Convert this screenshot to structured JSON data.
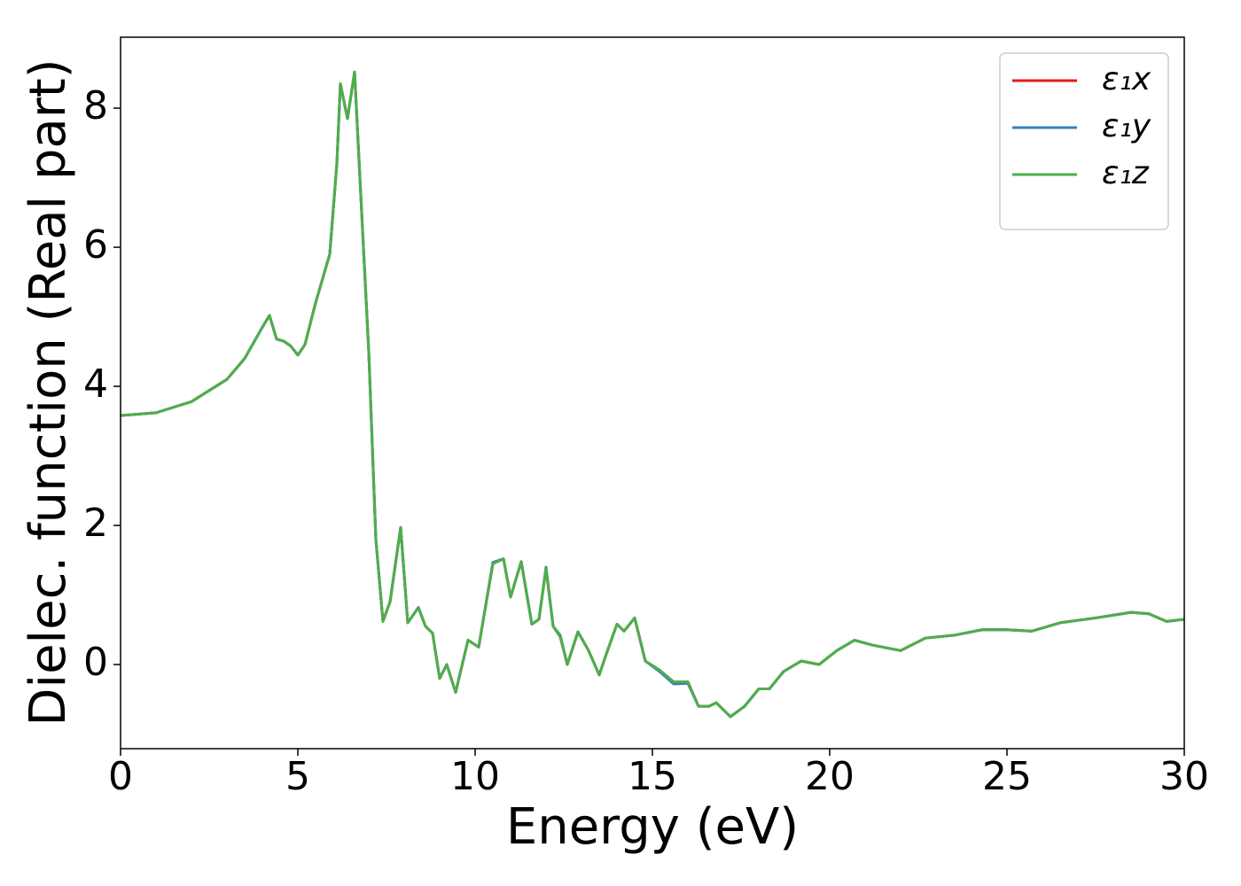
{
  "chart_data": {
    "type": "line",
    "xlabel": "Energy (eV)",
    "ylabel": "Dielec. function (Real part)",
    "x": [
      0,
      1,
      2,
      3,
      3.5,
      4.0,
      4.2,
      4.4,
      4.6,
      4.8,
      5.0,
      5.2,
      5.5,
      5.9,
      6.1,
      6.2,
      6.4,
      6.6,
      6.8,
      7.0,
      7.2,
      7.4,
      7.6,
      7.9,
      8.1,
      8.4,
      8.6,
      8.8,
      9.0,
      9.2,
      9.45,
      9.8,
      10.1,
      10.5,
      10.8,
      11.0,
      11.3,
      11.6,
      11.8,
      12.0,
      12.2,
      12.4,
      12.6,
      12.9,
      13.2,
      13.5,
      13.7,
      14.0,
      14.2,
      14.5,
      14.8,
      15.2,
      15.6,
      16.0,
      16.3,
      16.6,
      16.8,
      17.2,
      17.6,
      18.0,
      18.3,
      18.7,
      19.2,
      19.7,
      20.2,
      20.7,
      21.2,
      22.0,
      22.7,
      23.5,
      24.3,
      25.0,
      25.7,
      26.5,
      27.5,
      28.5,
      29.0,
      29.5,
      30.0
    ],
    "series": [
      {
        "name": "ε₁x",
        "color": "#e41a1c",
        "values": [
          3.58,
          3.62,
          3.78,
          4.1,
          4.4,
          4.85,
          5.02,
          4.68,
          4.65,
          4.58,
          4.45,
          4.6,
          5.2,
          5.9,
          7.2,
          8.35,
          7.85,
          8.52,
          6.5,
          4.5,
          1.8,
          0.62,
          0.9,
          1.97,
          0.6,
          0.82,
          0.55,
          0.45,
          -0.2,
          0.0,
          -0.4,
          0.35,
          0.25,
          1.45,
          1.52,
          0.97,
          1.48,
          0.58,
          0.65,
          1.38,
          0.55,
          0.4,
          0.0,
          0.47,
          0.2,
          -0.15,
          0.15,
          0.58,
          0.48,
          0.67,
          0.05,
          -0.08,
          -0.25,
          -0.25,
          -0.6,
          -0.6,
          -0.55,
          -0.75,
          -0.6,
          -0.35,
          -0.35,
          -0.1,
          0.05,
          0.0,
          0.2,
          0.35,
          0.28,
          0.2,
          0.38,
          0.42,
          0.5,
          0.5,
          0.48,
          0.6,
          0.67,
          0.75,
          0.73,
          0.62,
          0.65
        ]
      },
      {
        "name": "ε₁y",
        "color": "#377eb8",
        "values": [
          3.58,
          3.62,
          3.78,
          4.1,
          4.4,
          4.85,
          5.02,
          4.68,
          4.65,
          4.58,
          4.45,
          4.6,
          5.2,
          5.9,
          7.2,
          8.35,
          7.85,
          8.52,
          6.5,
          4.5,
          1.8,
          0.62,
          0.9,
          1.97,
          0.6,
          0.82,
          0.55,
          0.45,
          -0.2,
          0.0,
          -0.4,
          0.35,
          0.25,
          1.47,
          1.52,
          0.97,
          1.48,
          0.58,
          0.65,
          1.4,
          0.55,
          0.42,
          0.0,
          0.47,
          0.2,
          -0.15,
          0.15,
          0.58,
          0.48,
          0.67,
          0.05,
          -0.1,
          -0.28,
          -0.27,
          -0.6,
          -0.6,
          -0.55,
          -0.75,
          -0.6,
          -0.35,
          -0.35,
          -0.1,
          0.05,
          0.0,
          0.2,
          0.35,
          0.28,
          0.2,
          0.38,
          0.42,
          0.5,
          0.5,
          0.48,
          0.6,
          0.67,
          0.75,
          0.73,
          0.62,
          0.65
        ]
      },
      {
        "name": "ε₁z",
        "color": "#4daf4a",
        "values": [
          3.58,
          3.62,
          3.78,
          4.1,
          4.4,
          4.85,
          5.02,
          4.68,
          4.65,
          4.58,
          4.45,
          4.6,
          5.2,
          5.9,
          7.2,
          8.35,
          7.85,
          8.52,
          6.5,
          4.5,
          1.8,
          0.62,
          0.9,
          1.97,
          0.6,
          0.82,
          0.55,
          0.45,
          -0.2,
          0.0,
          -0.4,
          0.35,
          0.25,
          1.45,
          1.52,
          0.97,
          1.48,
          0.58,
          0.65,
          1.38,
          0.55,
          0.4,
          0.0,
          0.47,
          0.2,
          -0.15,
          0.15,
          0.58,
          0.48,
          0.67,
          0.05,
          -0.08,
          -0.25,
          -0.25,
          -0.6,
          -0.6,
          -0.55,
          -0.75,
          -0.6,
          -0.35,
          -0.35,
          -0.1,
          0.05,
          0.0,
          0.2,
          0.35,
          0.28,
          0.2,
          0.38,
          0.42,
          0.5,
          0.5,
          0.48,
          0.6,
          0.67,
          0.75,
          0.73,
          0.62,
          0.65
        ]
      }
    ],
    "xlim": [
      0,
      30
    ],
    "xticks": [
      0,
      5,
      10,
      15,
      20,
      25,
      30
    ],
    "ylim": [
      -1.21,
      9.02
    ],
    "yticks": [
      0,
      2,
      4,
      6,
      8
    ],
    "grid": false,
    "legend": "upper right"
  }
}
